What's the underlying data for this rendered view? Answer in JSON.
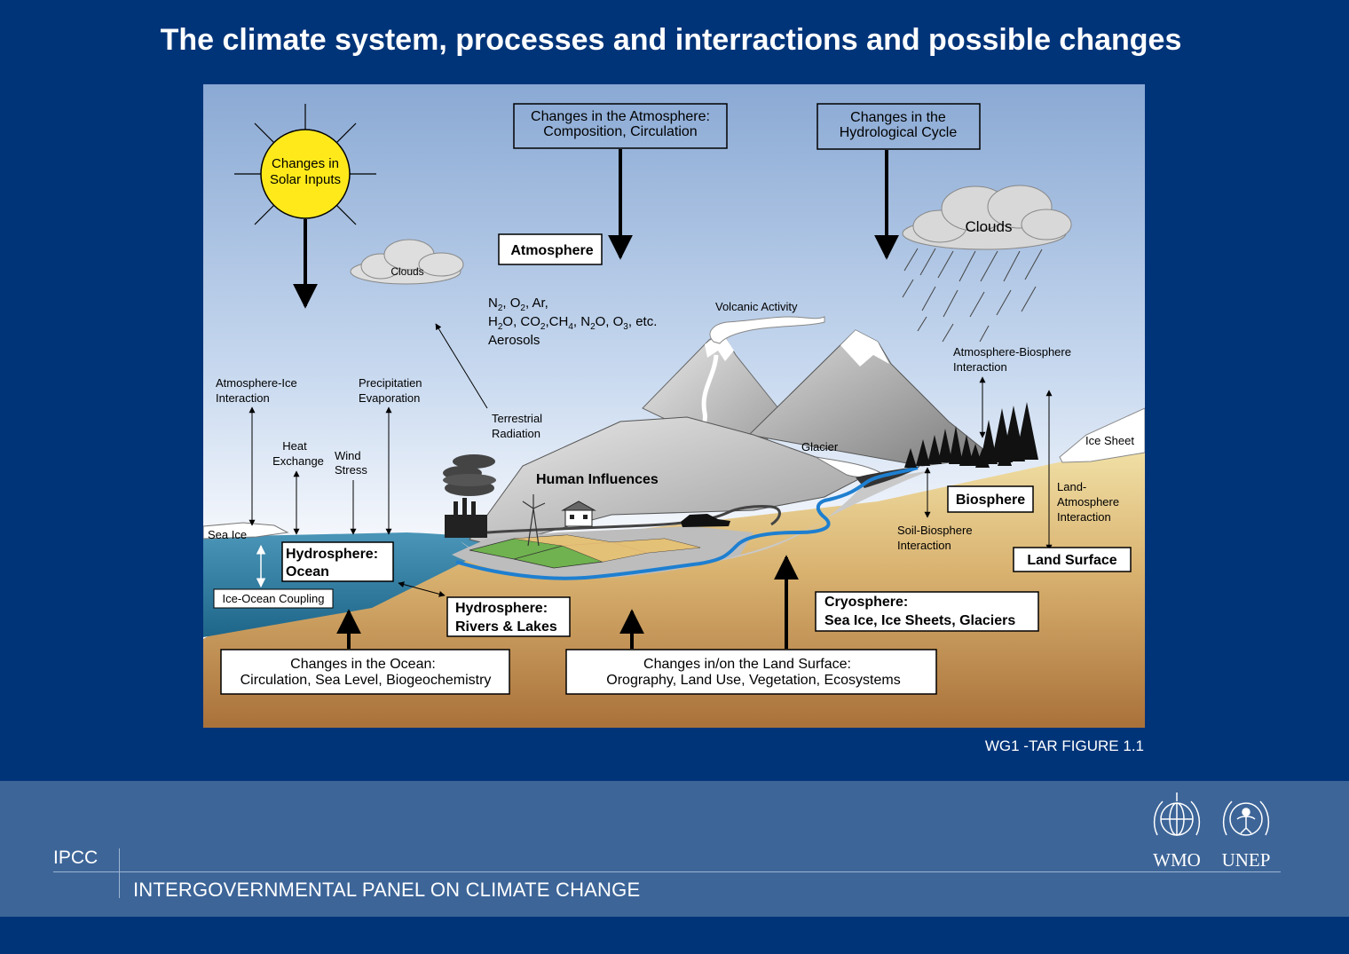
{
  "title": "The climate system, processes and interractions and possible changes",
  "caption": "WG1 -TAR FIGURE 1.1",
  "footer": {
    "acronym": "IPCC",
    "full_name": "INTERGOVERNMENTAL PANEL ON CLIMATE CHANGE",
    "logos": [
      "WMO",
      "UNEP"
    ]
  },
  "diagram": {
    "solar": [
      "Changes in",
      "Solar Inputs"
    ],
    "atm_changes": [
      "Changes in the Atmosphere:",
      "Composition, Circulation"
    ],
    "hydro_changes": [
      "Changes in the",
      "Hydrological Cycle"
    ],
    "atmosphere": "Atmosphere",
    "clouds_small": "Clouds",
    "clouds_big": "Clouds",
    "gases": {
      "line1": [
        "N",
        "2",
        ", O",
        "2",
        ", Ar,"
      ],
      "line2": [
        "H",
        "2",
        "O, CO",
        "2",
        ",CH",
        "4",
        ", N",
        "2",
        "O, O",
        "3",
        ", etc."
      ],
      "line3": "Aerosols"
    },
    "volcanic": "Volcanic Activity",
    "atm_bio": [
      "Atmosphere-Biosphere",
      "Interaction"
    ],
    "atm_ice": [
      "Atmosphere-Ice",
      "Interaction"
    ],
    "precip": [
      "Precipitatien",
      "Evaporation"
    ],
    "terrestrial": [
      "Terrestrial",
      "Radiation"
    ],
    "heat": [
      "Heat",
      "Exchange"
    ],
    "wind": [
      "Wind",
      "Stress"
    ],
    "glacier": "Glacier",
    "ice_sheet": "Ice Sheet",
    "human": "Human Influences",
    "biosphere": "Biosphere",
    "land_atm": [
      "Land-",
      "Atmosphere",
      "Interaction"
    ],
    "sea_ice": "Sea Ice",
    "hydro_ocean": [
      "Hydrosphere:",
      "Ocean"
    ],
    "soil_bio": [
      "Soil-Biosphere",
      "Interaction"
    ],
    "land_surface": "Land Surface",
    "ice_ocean": "Ice-Ocean Coupling",
    "cryo": [
      "Cryosphere:",
      "Sea Ice, Ice Sheets, Glaciers"
    ],
    "hydro_rivers": [
      "Hydrosphere:",
      "Rivers & Lakes"
    ],
    "ocean_changes": [
      "Changes in the Ocean:",
      "Circulation, Sea Level, Biogeochemistry"
    ],
    "land_changes": [
      "Changes in/on the Land Surface:",
      "Orography, Land Use, Vegetation, Ecosystems"
    ]
  }
}
